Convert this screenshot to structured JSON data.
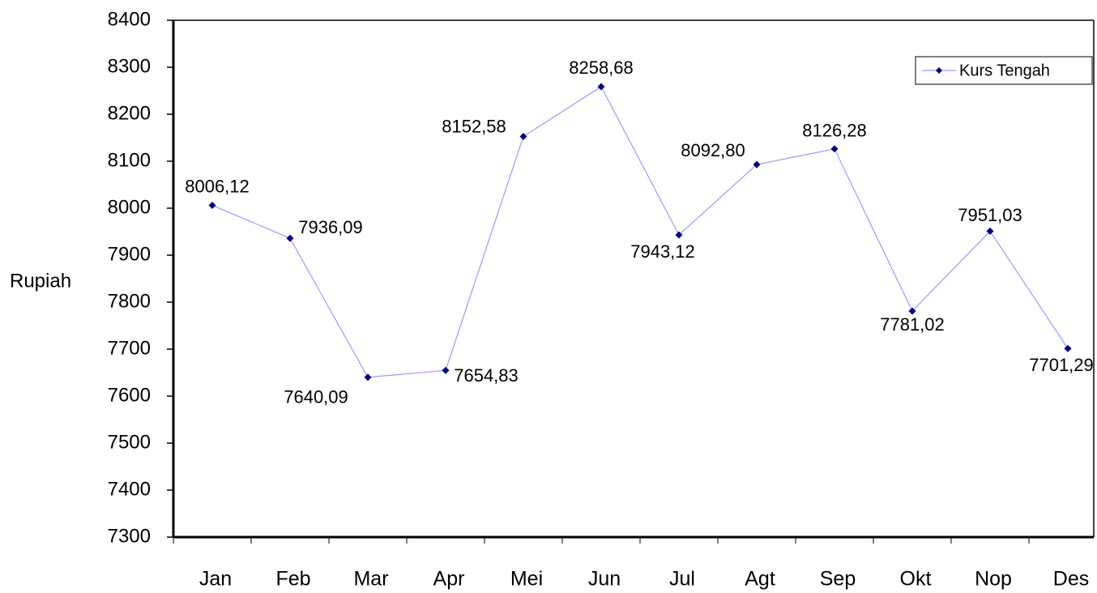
{
  "chart_data": {
    "type": "line",
    "y_label": "Rupiah",
    "categories": [
      "Jan",
      "Feb",
      "Mar",
      "Apr",
      "Mei",
      "Jun",
      "Jul",
      "Agt",
      "Sep",
      "Okt",
      "Nop",
      "Des"
    ],
    "series": [
      {
        "name": "Kurs Tengah",
        "color": "#9999ff",
        "marker_color": "#000080",
        "values": [
          8006.12,
          7936.09,
          7640.09,
          7654.83,
          8152.58,
          8258.68,
          7943.12,
          8092.8,
          8126.28,
          7781.02,
          7951.03,
          7701.29
        ],
        "value_labels": [
          "8006,12",
          "7936,09",
          "7640,09",
          "7654,83",
          "8152,58",
          "8258,68",
          "7943,12",
          "8092,80",
          "8126,28",
          "7781,02",
          "7951,03",
          "7701,29"
        ]
      }
    ],
    "ylim": [
      7300,
      8400
    ],
    "yticks": [
      7300,
      7400,
      7500,
      7600,
      7700,
      7800,
      7900,
      8000,
      8100,
      8200,
      8300,
      8400
    ],
    "legend": "top-right"
  }
}
